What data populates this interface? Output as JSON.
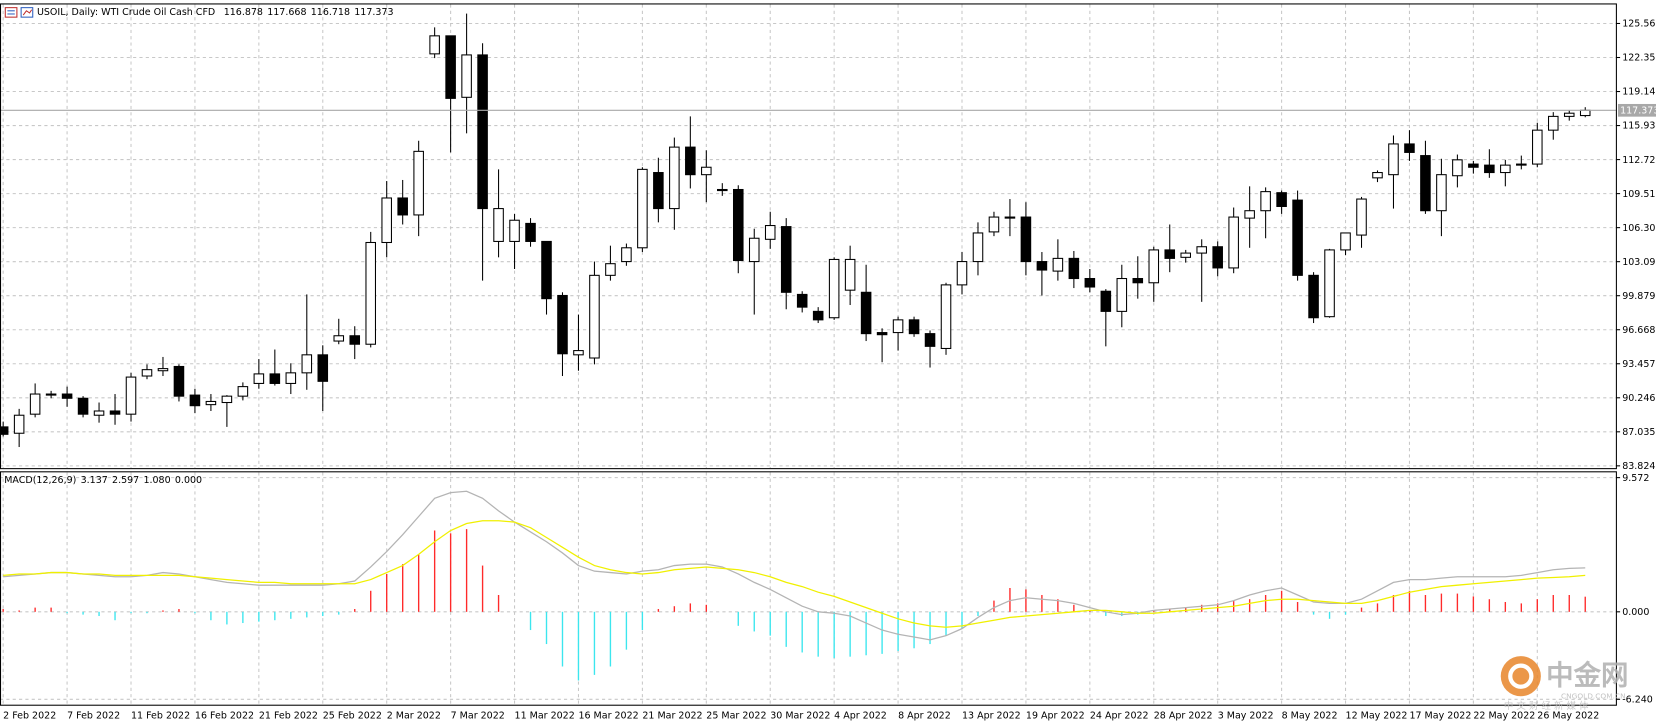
{
  "chart_data": [
    {
      "type": "candlestick",
      "title": "USOIL, Daily: WTI Crude Oil Cash CFD",
      "categories": [
        "2 Feb 2022",
        null,
        null,
        null,
        "7 Feb 2022",
        null,
        null,
        null,
        "11 Feb 2022",
        null,
        null,
        null,
        "16 Feb 2022",
        null,
        null,
        null,
        "21 Feb 2022",
        null,
        null,
        null,
        "25 Feb 2022",
        null,
        null,
        null,
        "2 Mar 2022",
        null,
        null,
        null,
        "7 Mar 2022",
        null,
        null,
        null,
        "11 Mar 2022",
        null,
        null,
        null,
        "16 Mar 2022",
        null,
        null,
        null,
        "21 Mar 2022",
        null,
        null,
        null,
        "25 Mar 2022",
        null,
        null,
        null,
        "30 Mar 2022",
        null,
        null,
        null,
        "4 Apr 2022",
        null,
        null,
        null,
        "8 Apr 2022",
        null,
        null,
        null,
        "13 Apr 2022",
        null,
        null,
        null,
        "19 Apr 2022",
        null,
        null,
        null,
        "24 Apr 2022",
        null,
        null,
        null,
        "28 Apr 2022",
        null,
        null,
        null,
        "3 May 2022",
        null,
        null,
        null,
        "8 May 2022",
        null,
        null,
        null,
        "12 May 2022",
        null,
        null,
        null,
        "17 May 2022",
        null,
        null,
        null,
        "22 May 2022",
        null,
        null,
        null,
        "26 May 2022",
        null,
        null,
        null
      ],
      "open": [
        87.5,
        86.9,
        88.7,
        90.5,
        90.6,
        90.2,
        88.6,
        89.0,
        88.7,
        92.3,
        92.8,
        93.2,
        90.5,
        89.6,
        89.8,
        90.4,
        91.6,
        92.5,
        91.6,
        92.6,
        94.3,
        95.6,
        96.1,
        95.3,
        104.9,
        109.1,
        107.5,
        122.7,
        124.4,
        118.6,
        122.6,
        105.0,
        105.0,
        106.7,
        105.0,
        99.9,
        94.3,
        94.0,
        101.8,
        103.1,
        104.4,
        111.5,
        108.1,
        113.9,
        111.3,
        109.9,
        109.9,
        103.1,
        105.2,
        106.4,
        100.0,
        98.4,
        97.8,
        100.4,
        100.2,
        96.4,
        96.4,
        97.6,
        96.3,
        94.9,
        100.9,
        103.1,
        105.9,
        107.3,
        107.3,
        103.1,
        102.2,
        103.4,
        101.5,
        100.3,
        98.4,
        101.5,
        101.1,
        104.2,
        103.5,
        103.9,
        104.5,
        102.5,
        107.2,
        107.9,
        109.6,
        108.9,
        101.8,
        97.9,
        104.2,
        105.6,
        111.0,
        111.3,
        114.2,
        113.1,
        107.9,
        111.2,
        112.3,
        112.2,
        111.5,
        112.2,
        112.3,
        115.5,
        116.8,
        116.878
      ],
      "high": [
        88.0,
        89.2,
        91.6,
        90.9,
        91.3,
        90.4,
        89.8,
        90.6,
        92.6,
        93.4,
        94.1,
        93.4,
        91.1,
        90.6,
        90.5,
        91.7,
        93.9,
        94.8,
        93.5,
        100.0,
        95.2,
        97.7,
        97.0,
        105.9,
        110.7,
        110.8,
        114.5,
        125.2,
        124.4,
        126.5,
        123.7,
        111.8,
        107.6,
        107.2,
        105.0,
        100.2,
        98.1,
        103.1,
        104.6,
        104.8,
        112.0,
        112.9,
        114.8,
        116.8,
        113.6,
        110.5,
        110.3,
        106.2,
        107.8,
        107.2,
        100.3,
        98.8,
        103.5,
        104.6,
        102.8,
        96.8,
        97.9,
        97.9,
        96.6,
        101.1,
        104.0,
        106.8,
        107.8,
        109.0,
        108.7,
        104.0,
        105.2,
        104.1,
        102.4,
        100.5,
        102.8,
        103.6,
        104.5,
        106.6,
        104.2,
        105.2,
        105.0,
        108.2,
        110.2,
        110.1,
        109.8,
        109.8,
        102.1,
        104.3,
        105.8,
        109.2,
        111.7,
        115.0,
        115.5,
        114.5,
        112.8,
        113.2,
        112.6,
        113.7,
        112.7,
        113.1,
        116.2,
        117.2,
        117.4,
        117.668
      ],
      "low": [
        86.6,
        85.6,
        88.4,
        90.2,
        89.4,
        88.4,
        87.9,
        87.7,
        88.0,
        92.0,
        92.3,
        89.9,
        88.8,
        89.0,
        87.5,
        90.0,
        91.1,
        91.4,
        90.6,
        91.0,
        89.0,
        95.3,
        93.9,
        95.0,
        103.5,
        106.6,
        105.5,
        122.3,
        113.4,
        115.2,
        101.3,
        103.5,
        102.4,
        104.5,
        98.1,
        92.3,
        92.8,
        93.4,
        101.3,
        102.7,
        104.0,
        106.8,
        106.1,
        110.0,
        108.7,
        109.3,
        102.0,
        98.1,
        104.3,
        98.6,
        98.3,
        97.3,
        97.6,
        99.0,
        95.6,
        93.6,
        94.7,
        96.0,
        93.1,
        94.3,
        100.0,
        101.8,
        105.5,
        105.5,
        101.8,
        99.9,
        101.3,
        100.6,
        100.2,
        95.1,
        96.9,
        99.6,
        99.3,
        102.1,
        103.0,
        99.3,
        101.7,
        102.0,
        104.4,
        105.3,
        107.6,
        101.3,
        97.3,
        97.8,
        103.7,
        104.4,
        110.6,
        108.1,
        112.6,
        107.6,
        105.5,
        110.1,
        111.4,
        111.0,
        110.2,
        111.8,
        112.0,
        114.6,
        116.4,
        116.718
      ],
      "close": [
        86.8,
        88.6,
        90.6,
        90.6,
        90.2,
        88.7,
        89.0,
        88.7,
        92.2,
        92.9,
        93.0,
        90.4,
        89.5,
        89.9,
        90.4,
        91.3,
        92.5,
        91.6,
        92.6,
        94.3,
        91.8,
        96.1,
        95.3,
        104.9,
        109.1,
        107.5,
        113.5,
        124.4,
        118.5,
        122.6,
        108.1,
        108.1,
        107.0,
        105.0,
        99.6,
        94.4,
        94.7,
        101.8,
        102.9,
        104.4,
        111.8,
        108.1,
        113.9,
        111.3,
        112.0,
        109.9,
        103.2,
        105.3,
        106.5,
        100.2,
        98.8,
        97.6,
        103.3,
        103.3,
        96.3,
        96.2,
        97.6,
        96.3,
        95.1,
        100.9,
        103.1,
        105.8,
        107.3,
        107.3,
        103.1,
        102.3,
        103.4,
        101.5,
        100.7,
        98.4,
        101.5,
        101.1,
        104.2,
        103.4,
        103.9,
        104.5,
        102.5,
        107.3,
        107.9,
        109.7,
        108.3,
        101.8,
        97.8,
        104.2,
        105.8,
        109.0,
        111.5,
        114.2,
        113.4,
        107.9,
        111.3,
        112.7,
        112.0,
        111.5,
        112.2,
        112.3,
        115.5,
        116.8,
        117.1,
        117.373
      ],
      "up_color": "#ffffff",
      "down_color": "#000000",
      "price_line": 117.373,
      "ylim": [
        83.61,
        127.36
      ],
      "yticks": [
        125.567,
        122.356,
        119.145,
        115.934,
        112.723,
        109.512,
        106.301,
        {
          "value": 103.09,
          "label": "103.090"
        },
        99.879,
        96.668,
        93.457,
        90.246,
        87.035,
        83.824
      ],
      "grid": true
    },
    {
      "type": "macd",
      "title": "MACD(12,26,9)",
      "status": [
        "3.137",
        "2.597",
        "1.080",
        "0.000"
      ],
      "series": [
        {
          "color": "#b4b4b4",
          "values": [
            2.5,
            2.6,
            2.7,
            2.8,
            2.8,
            2.7,
            2.6,
            2.5,
            2.5,
            2.6,
            2.8,
            2.7,
            2.5,
            2.3,
            2.1,
            2.0,
            1.9,
            1.9,
            1.9,
            1.9,
            1.9,
            2.0,
            2.2,
            3.2,
            4.3,
            5.5,
            6.8,
            8.1,
            8.5,
            8.6,
            8.1,
            7.2,
            6.4,
            5.7,
            5.0,
            4.2,
            3.3,
            2.9,
            2.8,
            2.7,
            2.9,
            3.0,
            3.3,
            3.4,
            3.4,
            3.2,
            2.7,
            2.1,
            1.6,
            1.0,
            0.4,
            0.0,
            -0.1,
            -0.3,
            -0.8,
            -1.3,
            -1.6,
            -1.8,
            -2.0,
            -1.7,
            -1.2,
            -0.4,
            0.3,
            0.8,
            1.0,
            0.9,
            0.8,
            0.6,
            0.3,
            0.0,
            -0.2,
            -0.1,
            0.1,
            0.2,
            0.3,
            0.4,
            0.5,
            0.8,
            1.2,
            1.5,
            1.7,
            1.2,
            0.7,
            0.6,
            0.6,
            0.9,
            1.5,
            2.1,
            2.3,
            2.3,
            2.4,
            2.5,
            2.5,
            2.5,
            2.5,
            2.6,
            2.8,
            3.0,
            3.1,
            3.137
          ]
        },
        {
          "color": "#f0f000",
          "values": [
            2.6,
            2.7,
            2.7,
            2.8,
            2.8,
            2.7,
            2.7,
            2.6,
            2.6,
            2.6,
            2.6,
            2.6,
            2.5,
            2.4,
            2.3,
            2.2,
            2.1,
            2.1,
            2.0,
            2.0,
            2.0,
            2.0,
            2.0,
            2.3,
            2.8,
            3.3,
            4.1,
            5.0,
            5.8,
            6.3,
            6.5,
            6.5,
            6.4,
            6.0,
            5.3,
            4.6,
            3.9,
            3.3,
            3.0,
            2.8,
            2.7,
            2.8,
            3.0,
            3.1,
            3.2,
            3.1,
            3.0,
            2.8,
            2.5,
            2.1,
            1.8,
            1.4,
            1.1,
            0.7,
            0.3,
            -0.1,
            -0.5,
            -0.8,
            -1.0,
            -1.1,
            -1.0,
            -0.8,
            -0.6,
            -0.4,
            -0.3,
            -0.2,
            -0.1,
            0.0,
            0.1,
            0.1,
            0.0,
            -0.1,
            -0.1,
            0.0,
            0.1,
            0.2,
            0.3,
            0.4,
            0.6,
            0.8,
            0.9,
            0.9,
            0.8,
            0.7,
            0.6,
            0.6,
            0.8,
            1.1,
            1.4,
            1.6,
            1.8,
            1.9,
            2.0,
            2.1,
            2.2,
            2.3,
            2.4,
            2.45,
            2.5,
            2.597
          ]
        }
      ],
      "histogram": {
        "up_color": "#ff2a2a",
        "down_color": "#3ce6ee",
        "values": [
          0.2,
          0.1,
          0.3,
          0.3,
          -0.1,
          -0.2,
          -0.3,
          -0.6,
          -0.1,
          -0.1,
          0.1,
          0.2,
          -0.1,
          -0.6,
          -0.9,
          -0.8,
          -0.7,
          -0.6,
          -0.5,
          -0.4,
          -0.3,
          -0.2,
          0.2,
          1.5,
          2.7,
          3.4,
          4.1,
          5.8,
          5.6,
          5.9,
          3.3,
          1.2,
          0,
          -1.3,
          -2.3,
          -3.9,
          -4.9,
          -4.5,
          -3.9,
          -2.7,
          -1.3,
          0.2,
          0.4,
          0.6,
          0.5,
          0,
          -1.0,
          -1.4,
          -1.7,
          -2.5,
          -2.9,
          -3.2,
          -3.3,
          -3.2,
          -3.1,
          -3.0,
          -2.8,
          -2.6,
          -2.3,
          -1.7,
          -1.2,
          -0.3,
          0.8,
          1.7,
          1.6,
          1.2,
          0.9,
          0.5,
          0.1,
          -0.3,
          -0.3,
          -0.2,
          0.1,
          0.2,
          0.3,
          0.5,
          0.6,
          0.8,
          0.9,
          1.2,
          1.5,
          0.7,
          -0.2,
          -0.5,
          -0.2,
          0.3,
          0.6,
          1.2,
          1.5,
          1.2,
          1.3,
          1.3,
          1.1,
          0.9,
          0.7,
          0.6,
          0.9,
          1.2,
          1.2,
          1.08
        ]
      },
      "ylim": [
        -6.7,
        9.95
      ],
      "yticks": [
        9.572,
        {
          "value": 0,
          "label": "0.000"
        },
        {
          "value": -6.24,
          "label": "-6.240"
        }
      ],
      "grid": true
    }
  ],
  "watermark": {
    "brand": "中金网",
    "domain": "CNGOLD.COM.CN",
    "slogan": "中 文 财 经 新 媒 体"
  }
}
